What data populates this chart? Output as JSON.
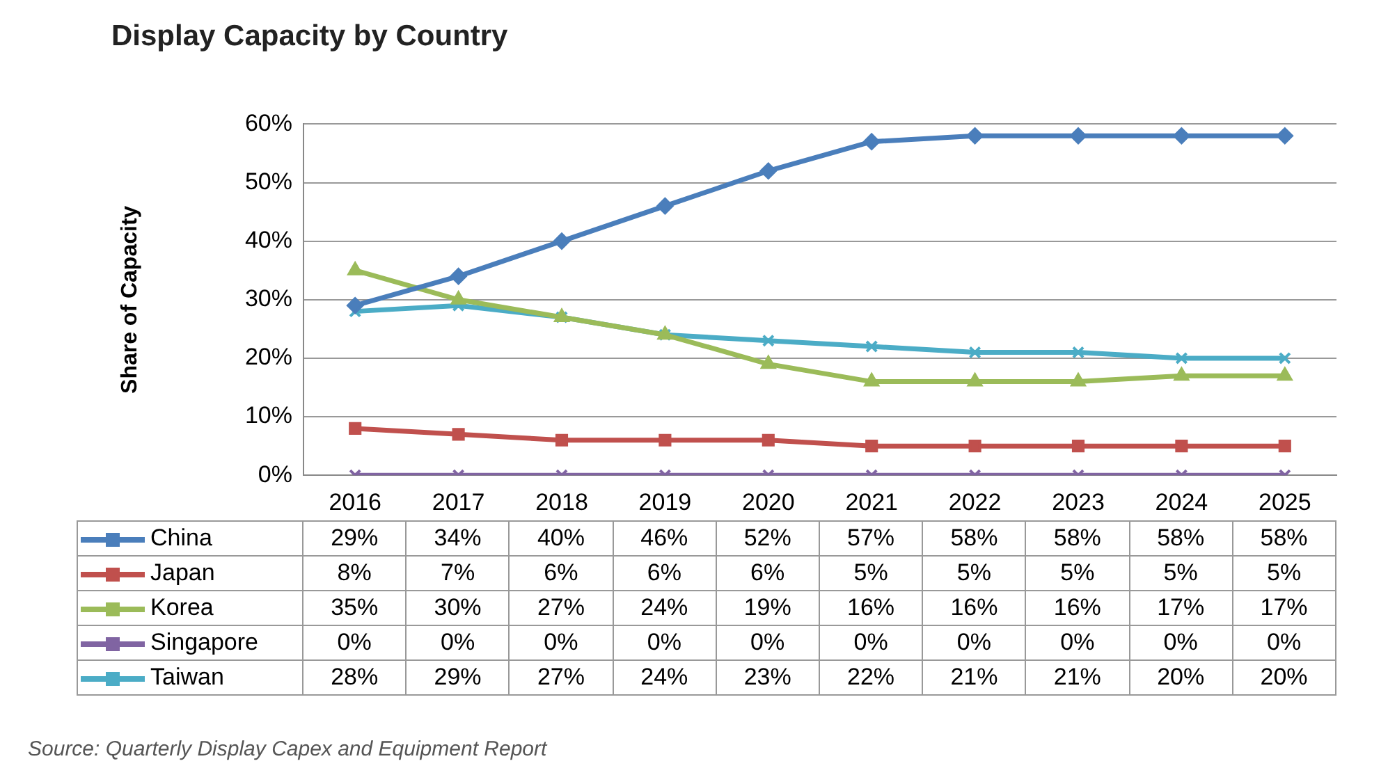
{
  "chart_data": {
    "type": "line",
    "title": "Display Capacity by Country",
    "ylabel": "Share of Capacity",
    "categories": [
      "2016",
      "2017",
      "2018",
      "2019",
      "2020",
      "2021",
      "2022",
      "2023",
      "2024",
      "2025"
    ],
    "series": [
      {
        "name": "China",
        "color": "#4a7ebb",
        "marker": "diamond",
        "values": [
          29,
          34,
          40,
          46,
          52,
          57,
          58,
          58,
          58,
          58
        ],
        "value_labels": [
          "29%",
          "34%",
          "40%",
          "46%",
          "52%",
          "57%",
          "58%",
          "58%",
          "58%",
          "58%"
        ]
      },
      {
        "name": "Japan",
        "color": "#c0504d",
        "marker": "square",
        "values": [
          8,
          7,
          6,
          6,
          6,
          5,
          5,
          5,
          5,
          5
        ],
        "value_labels": [
          "8%",
          "7%",
          "6%",
          "6%",
          "6%",
          "5%",
          "5%",
          "5%",
          "5%",
          "5%"
        ]
      },
      {
        "name": "Korea",
        "color": "#9bbb59",
        "marker": "triangle",
        "values": [
          35,
          30,
          27,
          24,
          19,
          16,
          16,
          16,
          17,
          17
        ],
        "value_labels": [
          "35%",
          "30%",
          "27%",
          "24%",
          "19%",
          "16%",
          "16%",
          "16%",
          "17%",
          "17%"
        ]
      },
      {
        "name": "Singapore",
        "color": "#8064a2",
        "marker": "cross",
        "values": [
          0,
          0,
          0,
          0,
          0,
          0,
          0,
          0,
          0,
          0
        ],
        "value_labels": [
          "0%",
          "0%",
          "0%",
          "0%",
          "0%",
          "0%",
          "0%",
          "0%",
          "0%",
          "0%"
        ]
      },
      {
        "name": "Taiwan",
        "color": "#4bacc6",
        "marker": "cross",
        "values": [
          28,
          29,
          27,
          24,
          23,
          22,
          21,
          21,
          20,
          20
        ],
        "value_labels": [
          "28%",
          "29%",
          "27%",
          "24%",
          "23%",
          "22%",
          "21%",
          "21%",
          "20%",
          "20%"
        ]
      }
    ],
    "ylim": [
      0,
      60
    ],
    "yticks": [
      {
        "value": 0,
        "label": "0%"
      },
      {
        "value": 10,
        "label": "10%"
      },
      {
        "value": 20,
        "label": "20%"
      },
      {
        "value": 30,
        "label": "30%"
      },
      {
        "value": 40,
        "label": "40%"
      },
      {
        "value": 50,
        "label": "50%"
      },
      {
        "value": 60,
        "label": "60%"
      }
    ],
    "grid": "y",
    "legend": "bottom",
    "annotations": [
      "Source: Quarterly Display Capex and Equipment Report"
    ]
  }
}
